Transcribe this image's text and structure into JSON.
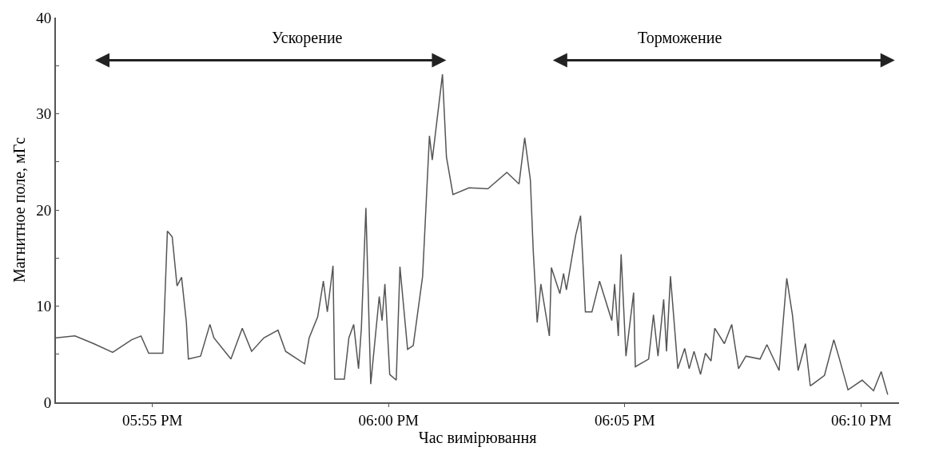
{
  "chart_data": {
    "type": "line",
    "xlabel": "Час вимірювання",
    "ylabel": "Магнитное поле, мГс",
    "x": [
      17.8827,
      17.8894,
      17.896,
      17.9027,
      17.9094,
      17.9127,
      17.9154,
      17.9204,
      17.922,
      17.9237,
      17.9254,
      17.927,
      17.9287,
      17.9294,
      17.9337,
      17.937,
      17.9384,
      17.9444,
      17.9484,
      17.9517,
      17.956,
      17.961,
      17.9637,
      17.9704,
      17.972,
      17.975,
      17.977,
      17.9784,
      17.9804,
      17.981,
      17.9844,
      17.986,
      17.9877,
      17.9894,
      17.9904,
      17.992,
      17.9937,
      17.9967,
      17.9977,
      17.9987,
      18.0004,
      18.0027,
      18.004,
      18.0067,
      18.0087,
      18.012,
      18.0144,
      18.0154,
      18.019,
      18.0204,
      18.0227,
      18.0284,
      18.035,
      18.0417,
      18.046,
      18.048,
      18.05,
      18.051,
      18.0524,
      18.0537,
      18.0567,
      18.0574,
      18.0604,
      18.0617,
      18.0627,
      18.066,
      18.0677,
      18.0694,
      18.0717,
      18.0744,
      18.0787,
      18.0797,
      18.081,
      18.082,
      18.0837,
      18.0864,
      18.087,
      18.0917,
      18.0934,
      18.095,
      18.097,
      18.098,
      18.0994,
      18.102,
      18.1044,
      18.106,
      18.1077,
      18.11,
      18.1117,
      18.1137,
      18.115,
      18.1184,
      18.121,
      18.1234,
      18.126,
      18.131,
      18.1334,
      18.1377,
      18.1404,
      18.1424,
      18.1444,
      18.147,
      18.1487,
      18.1537,
      18.157,
      18.1587,
      18.162,
      18.167,
      18.171,
      18.1737,
      18.176
    ],
    "series": [
      {
        "color": "#555555",
        "values": [
          6.7,
          6.9,
          6.1,
          5.2,
          6.5,
          6.9,
          5.1,
          5.1,
          17.8,
          17.2,
          12.1,
          13.0,
          8.3,
          4.5,
          4.8,
          8.1,
          6.7,
          4.5,
          7.7,
          5.3,
          6.7,
          7.5,
          5.3,
          4.0,
          6.7,
          8.9,
          12.6,
          9.4,
          14.2,
          2.4,
          2.4,
          6.7,
          8.1,
          3.5,
          7.7,
          20.2,
          1.9,
          11.0,
          8.5,
          12.3,
          2.9,
          2.3,
          14.1,
          5.5,
          5.9,
          13.1,
          27.7,
          25.2,
          34.1,
          25.5,
          21.6,
          22.3,
          22.2,
          23.9,
          22.7,
          27.5,
          23.1,
          15.8,
          8.3,
          12.3,
          6.9,
          14.0,
          11.3,
          13.4,
          11.7,
          17.4,
          19.4,
          9.4,
          9.4,
          12.6,
          8.5,
          12.3,
          6.9,
          15.4,
          4.8,
          11.4,
          3.7,
          4.5,
          9.1,
          4.8,
          10.7,
          5.3,
          13.1,
          3.5,
          5.6,
          3.5,
          5.3,
          2.9,
          5.1,
          4.3,
          7.7,
          6.1,
          8.1,
          3.5,
          4.8,
          4.5,
          6.0,
          3.3,
          12.9,
          9.1,
          3.3,
          6.1,
          1.7,
          2.8,
          6.5,
          4.8,
          1.3,
          2.3,
          1.2,
          3.2,
          0.8
        ]
      }
    ],
    "xlim": [
      17.8827,
      18.18
    ],
    "xticks": [
      {
        "value": 17.9167,
        "label": "05:55 PM"
      },
      {
        "value": 18.0,
        "label": "06:00 PM"
      },
      {
        "value": 18.0833,
        "label": "06:05 PM"
      },
      {
        "value": 18.1667,
        "label": "06:10 PM"
      }
    ],
    "ylim": [
      0,
      40
    ],
    "yticks": [
      0,
      {
        "value": 5,
        "label": null
      },
      10,
      {
        "value": 15,
        "label": null
      },
      20,
      {
        "value": 25,
        "label": null
      },
      30,
      {
        "value": 35,
        "label": null
      },
      40
    ],
    "annotations": [
      "Ускорение",
      "Торможение"
    ],
    "marker": "none",
    "line_style": "solid"
  }
}
